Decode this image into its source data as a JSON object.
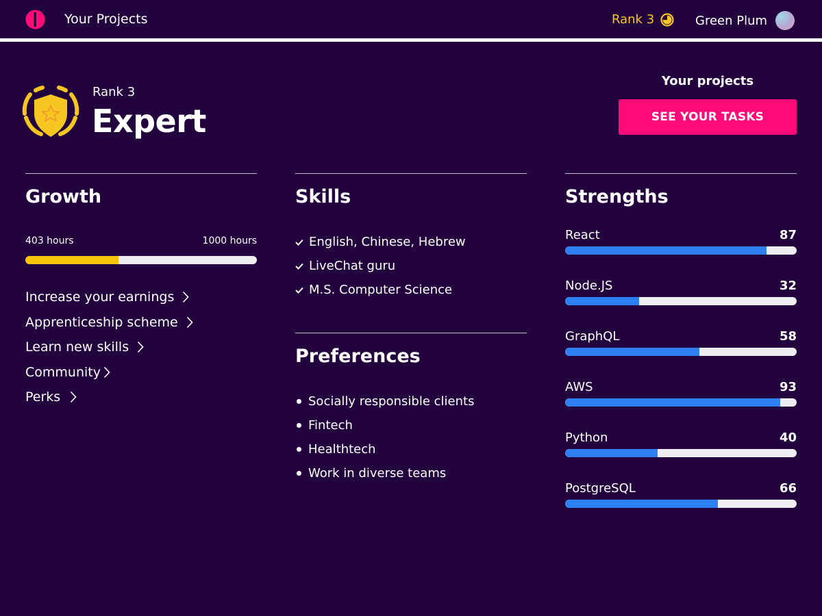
{
  "topbar": {
    "title": "Your Projects",
    "rank": "Rank 3",
    "user_name": "Green Plum"
  },
  "header": {
    "rank_label": "Rank 3",
    "level": "Expert",
    "projects_heading": "Your projects",
    "cta_label": "SEE YOUR TASKS"
  },
  "growth": {
    "title": "Growth",
    "current_label": "403 hours",
    "target_label": "1000 hours",
    "progress": 0.403,
    "links": [
      "Increase your earnings",
      "Apprenticeship scheme",
      "Learn new skills",
      "Community",
      "Perks"
    ]
  },
  "skills": {
    "title": "Skills",
    "items": [
      "English, Chinese, Hebrew",
      "LiveChat guru",
      "M.S. Computer Science"
    ]
  },
  "preferences": {
    "title": "Preferences",
    "items": [
      "Socially responsible clients",
      "Fintech",
      "Healthtech",
      "Work in diverse teams"
    ]
  },
  "strengths": {
    "title": "Strengths",
    "items": [
      {
        "name": "React",
        "value": 87
      },
      {
        "name": "Node.JS",
        "value": 32
      },
      {
        "name": "GraphQL",
        "value": 58
      },
      {
        "name": "AWS",
        "value": 93
      },
      {
        "name": "Python",
        "value": 40
      },
      {
        "name": "PostgreSQL",
        "value": 66
      }
    ]
  },
  "colors": {
    "background": "#22033d",
    "accent_pink": "#ff0a78",
    "accent_yellow": "#f7c408",
    "bar_blue": "#2f80f0"
  },
  "icons": {
    "logo": "brand-logo-icon",
    "rank": "rank-clock-icon",
    "badge": "shield-star-badge-icon",
    "link": "chevron-right-icon",
    "skill": "check-icon",
    "preference": "bullet-dot-icon"
  }
}
